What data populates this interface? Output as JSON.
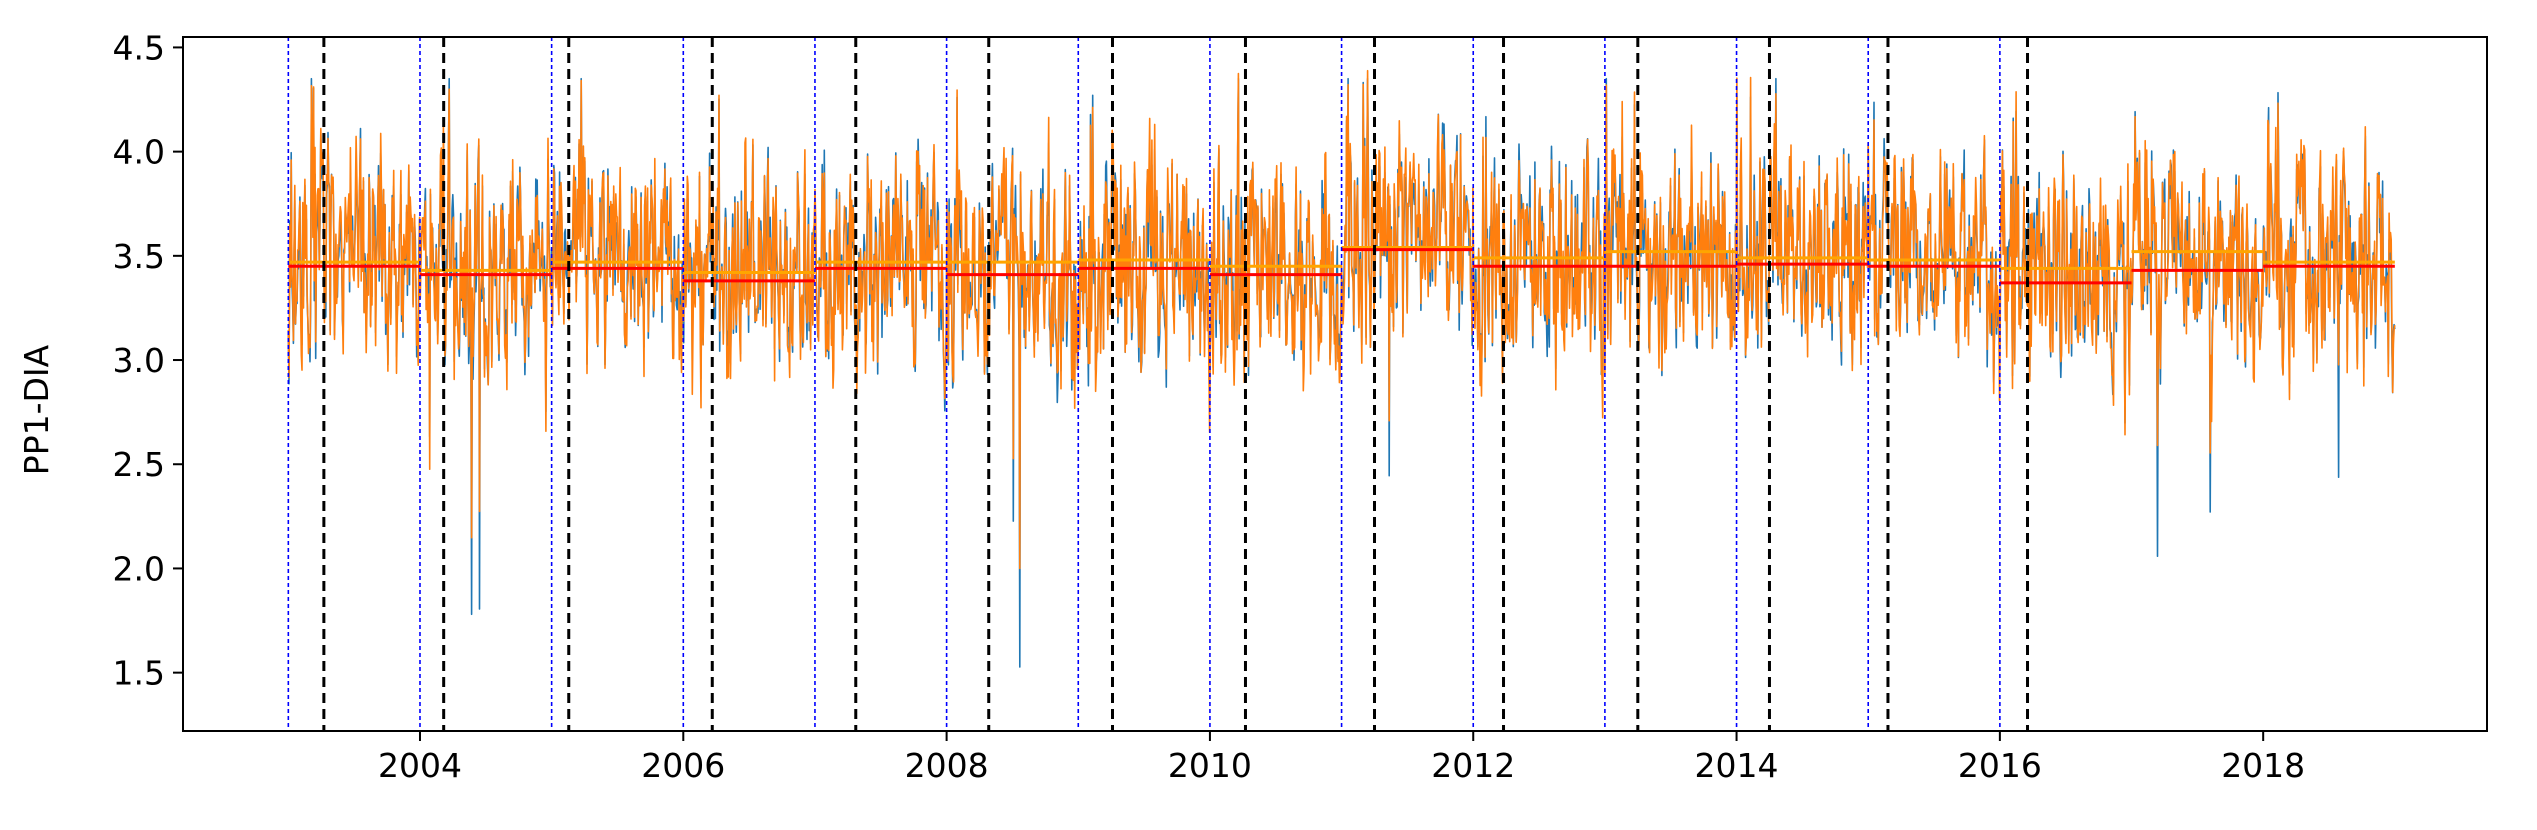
{
  "chart_data": {
    "type": "line",
    "title": "",
    "xlabel": "",
    "ylabel": "PP1-DIA",
    "xlim": [
      2002.2,
      2019.7
    ],
    "ylim": [
      1.22,
      4.55
    ],
    "x_ticks": [
      2004,
      2006,
      2008,
      2010,
      2012,
      2014,
      2016,
      2018
    ],
    "x_tick_labels": [
      "2004",
      "2006",
      "2008",
      "2010",
      "2012",
      "2014",
      "2016",
      "2018"
    ],
    "y_ticks": [
      1.5,
      2.0,
      2.5,
      3.0,
      3.5,
      4.0,
      4.5
    ],
    "y_tick_labels": [
      "1.5",
      "2.0",
      "2.5",
      "3.0",
      "3.5",
      "4.0",
      "4.5"
    ],
    "grid": false,
    "colors": {
      "series_observed": "#1f77b4",
      "series_model": "#ff7f0e",
      "annual_mean_red": "#ff0000",
      "annual_mean_orange": "#ffa500",
      "year_start_lines": "#0000ff",
      "event_lines": "#000000"
    },
    "series": [
      {
        "name": "",
        "color": "#1f77b4",
        "x": [],
        "y": []
      },
      {
        "name": "",
        "color": "#ff7f0e",
        "x": [],
        "y": []
      }
    ],
    "annual_means": [
      {
        "start": 2003,
        "end": 2004,
        "red": 3.45,
        "orange": 3.47
      },
      {
        "start": 2004,
        "end": 2005,
        "red": 3.41,
        "orange": 3.43
      },
      {
        "start": 2005,
        "end": 2006,
        "red": 3.44,
        "orange": 3.47
      },
      {
        "start": 2006,
        "end": 2007,
        "red": 3.38,
        "orange": 3.42
      },
      {
        "start": 2007,
        "end": 2008,
        "red": 3.44,
        "orange": 3.47
      },
      {
        "start": 2008,
        "end": 2009,
        "red": 3.41,
        "orange": 3.47
      },
      {
        "start": 2009,
        "end": 2010,
        "red": 3.44,
        "orange": 3.48
      },
      {
        "start": 2010,
        "end": 2011,
        "red": 3.41,
        "orange": 3.45
      },
      {
        "start": 2011,
        "end": 2012,
        "red": 3.53,
        "orange": 3.54
      },
      {
        "start": 2012,
        "end": 2013,
        "red": 3.45,
        "orange": 3.49
      },
      {
        "start": 2013,
        "end": 2014,
        "red": 3.45,
        "orange": 3.52
      },
      {
        "start": 2014,
        "end": 2015,
        "red": 3.46,
        "orange": 3.49
      },
      {
        "start": 2015,
        "end": 2016,
        "red": 3.45,
        "orange": 3.48
      },
      {
        "start": 2016,
        "end": 2017,
        "red": 3.37,
        "orange": 3.44
      },
      {
        "start": 2017,
        "end": 2018,
        "red": 3.43,
        "orange": 3.52
      },
      {
        "start": 2018,
        "end": 2019,
        "red": 3.45,
        "orange": 3.47
      }
    ],
    "year_start_lines": [
      2003,
      2004,
      2005,
      2006,
      2007,
      2008,
      2009,
      2010,
      2011,
      2012,
      2013,
      2014,
      2015,
      2016
    ],
    "event_lines": [
      2003.27,
      2004.18,
      2005.13,
      2006.22,
      2007.31,
      2008.32,
      2009.26,
      2010.27,
      2011.25,
      2012.23,
      2013.25,
      2014.25,
      2015.15,
      2016.21
    ]
  }
}
